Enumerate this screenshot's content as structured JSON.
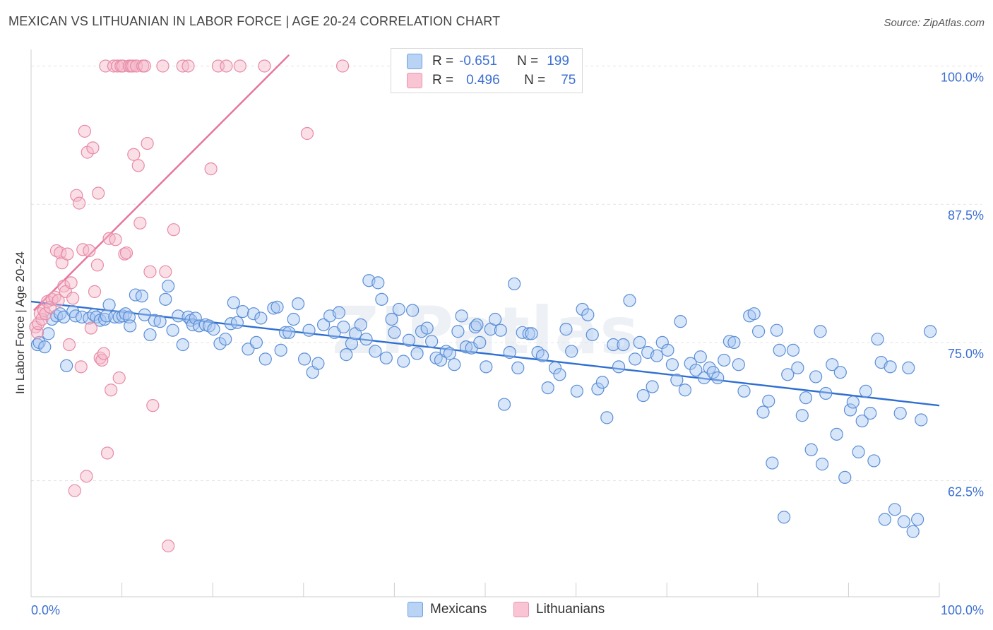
{
  "header": {
    "title": "MEXICAN VS LITHUANIAN IN LABOR FORCE | AGE 20-24 CORRELATION CHART",
    "source": "Source: ZipAtlas.com"
  },
  "legend": {
    "rows": [
      {
        "r_label": "R =",
        "r_value": "-0.651",
        "n_label": "N =",
        "n_value": "199",
        "color": "#a9c8f2"
      },
      {
        "r_label": "R =",
        "r_value": "0.496",
        "n_label": "N =",
        "n_value": "75",
        "color": "#f5b7c9"
      }
    ],
    "series": [
      {
        "label": "Mexicans",
        "color": "#a9c8f2"
      },
      {
        "label": "Lithuanians",
        "color": "#f5b7c9"
      }
    ]
  },
  "watermark": "ZIPatlas",
  "chart_data": {
    "type": "scatter",
    "title": "MEXICAN VS LITHUANIAN IN LABOR FORCE | AGE 20-24 CORRELATION CHART",
    "xlabel": "",
    "ylabel": "In Labor Force | Age 20-24",
    "xlim": [
      0,
      100
    ],
    "ylim": [
      52,
      101.5
    ],
    "x_tick_labels": [
      "0.0%",
      "100.0%"
    ],
    "y_ticks": [
      62.5,
      75.0,
      87.5,
      100.0
    ],
    "y_tick_labels": [
      "62.5%",
      "75.0%",
      "87.5%",
      "100.0%"
    ],
    "grid": true,
    "legend_position": "top-center",
    "series": [
      {
        "name": "Mexicans",
        "color": "#a9c8f2",
        "stroke": "#5b8ed6",
        "trend": {
          "x": [
            0,
            100
          ],
          "y": [
            78.7,
            69.3
          ],
          "color": "#2f6fd1"
        },
        "points": [
          [
            0.7,
            74.8
          ],
          [
            0.9,
            75.0
          ],
          [
            1.5,
            74.6
          ],
          [
            1.9,
            75.8
          ],
          [
            2.3,
            77.1
          ],
          [
            2.8,
            77.4
          ],
          [
            3.2,
            77.6
          ],
          [
            3.6,
            77.3
          ],
          [
            3.9,
            72.9
          ],
          [
            4.6,
            77.8
          ],
          [
            4.9,
            77.4
          ],
          [
            5.6,
            77.3
          ],
          [
            6.4,
            77.2
          ],
          [
            6.9,
            77.5
          ],
          [
            7.2,
            77.3
          ],
          [
            7.6,
            77.0
          ],
          [
            8.1,
            77.1
          ],
          [
            8.3,
            77.4
          ],
          [
            8.6,
            78.4
          ],
          [
            9.2,
            77.3
          ],
          [
            9.7,
            77.3
          ],
          [
            10.1,
            77.4
          ],
          [
            10.4,
            77.6
          ],
          [
            10.8,
            77.3
          ],
          [
            10.9,
            76.5
          ],
          [
            11.5,
            79.3
          ],
          [
            12.2,
            79.2
          ],
          [
            12.5,
            77.5
          ],
          [
            13.1,
            75.7
          ],
          [
            13.6,
            77.0
          ],
          [
            14.2,
            76.9
          ],
          [
            14.8,
            78.9
          ],
          [
            15.1,
            80.1
          ],
          [
            15.6,
            76.1
          ],
          [
            16.2,
            77.4
          ],
          [
            16.7,
            74.8
          ],
          [
            17.3,
            77.3
          ],
          [
            17.6,
            77.0
          ],
          [
            17.8,
            76.6
          ],
          [
            18.1,
            77.2
          ],
          [
            18.5,
            76.5
          ],
          [
            19.2,
            76.6
          ],
          [
            19.6,
            76.5
          ],
          [
            20.1,
            76.2
          ],
          [
            20.8,
            74.9
          ],
          [
            21.4,
            75.3
          ],
          [
            22.0,
            76.7
          ],
          [
            22.3,
            78.6
          ],
          [
            22.7,
            76.8
          ],
          [
            23.3,
            77.8
          ],
          [
            23.9,
            74.4
          ],
          [
            24.5,
            77.6
          ],
          [
            24.8,
            75.0
          ],
          [
            25.3,
            77.2
          ],
          [
            25.8,
            73.5
          ],
          [
            26.7,
            78.1
          ],
          [
            27.1,
            78.2
          ],
          [
            27.5,
            74.3
          ],
          [
            28.0,
            75.9
          ],
          [
            28.4,
            75.9
          ],
          [
            28.9,
            77.1
          ],
          [
            29.4,
            78.5
          ],
          [
            30.1,
            73.5
          ],
          [
            30.6,
            76.1
          ],
          [
            31.0,
            72.3
          ],
          [
            31.6,
            73.1
          ],
          [
            32.2,
            76.6
          ],
          [
            32.9,
            77.4
          ],
          [
            33.4,
            75.9
          ],
          [
            33.9,
            77.7
          ],
          [
            34.4,
            76.4
          ],
          [
            34.7,
            73.9
          ],
          [
            35.3,
            74.9
          ],
          [
            35.7,
            75.8
          ],
          [
            36.3,
            76.6
          ],
          [
            36.9,
            75.3
          ],
          [
            37.2,
            80.6
          ],
          [
            37.9,
            74.2
          ],
          [
            38.2,
            80.4
          ],
          [
            38.6,
            78.9
          ],
          [
            39.1,
            73.6
          ],
          [
            39.7,
            77.1
          ],
          [
            40.0,
            75.9
          ],
          [
            40.5,
            78.0
          ],
          [
            41.0,
            73.3
          ],
          [
            41.6,
            75.2
          ],
          [
            42.0,
            77.9
          ],
          [
            42.5,
            74.0
          ],
          [
            43.0,
            76.0
          ],
          [
            43.6,
            76.3
          ],
          [
            44.1,
            75.1
          ],
          [
            44.6,
            73.6
          ],
          [
            45.1,
            73.4
          ],
          [
            45.7,
            74.2
          ],
          [
            46.1,
            74.0
          ],
          [
            46.6,
            73.0
          ],
          [
            47.0,
            76.0
          ],
          [
            47.4,
            77.4
          ],
          [
            47.9,
            74.6
          ],
          [
            48.5,
            74.5
          ],
          [
            48.9,
            76.4
          ],
          [
            49.1,
            76.6
          ],
          [
            49.4,
            75.0
          ],
          [
            50.1,
            72.8
          ],
          [
            50.6,
            76.2
          ],
          [
            51.1,
            77.1
          ],
          [
            51.7,
            76.1
          ],
          [
            52.1,
            69.4
          ],
          [
            52.7,
            74.1
          ],
          [
            53.2,
            80.3
          ],
          [
            53.6,
            72.7
          ],
          [
            54.1,
            75.9
          ],
          [
            54.8,
            75.8
          ],
          [
            55.1,
            75.8
          ],
          [
            55.8,
            74.1
          ],
          [
            56.3,
            73.8
          ],
          [
            56.9,
            70.9
          ],
          [
            57.7,
            72.7
          ],
          [
            58.2,
            72.1
          ],
          [
            58.9,
            76.2
          ],
          [
            59.5,
            74.2
          ],
          [
            60.1,
            70.6
          ],
          [
            60.7,
            78.0
          ],
          [
            61.3,
            77.5
          ],
          [
            61.8,
            75.7
          ],
          [
            62.4,
            70.8
          ],
          [
            62.9,
            71.4
          ],
          [
            63.4,
            68.2
          ],
          [
            64.1,
            74.8
          ],
          [
            64.7,
            72.8
          ],
          [
            65.2,
            74.8
          ],
          [
            65.9,
            78.8
          ],
          [
            66.5,
            73.5
          ],
          [
            67.0,
            75.0
          ],
          [
            67.4,
            70.2
          ],
          [
            67.9,
            74.1
          ],
          [
            68.4,
            71.0
          ],
          [
            68.9,
            73.8
          ],
          [
            69.5,
            75.0
          ],
          [
            70.1,
            74.3
          ],
          [
            70.6,
            73.0
          ],
          [
            71.1,
            71.6
          ],
          [
            71.5,
            76.9
          ],
          [
            72.0,
            70.7
          ],
          [
            72.6,
            73.1
          ],
          [
            73.2,
            72.5
          ],
          [
            73.7,
            73.7
          ],
          [
            74.1,
            71.8
          ],
          [
            74.7,
            72.7
          ],
          [
            75.1,
            72.3
          ],
          [
            75.6,
            71.8
          ],
          [
            76.3,
            73.4
          ],
          [
            76.9,
            75.1
          ],
          [
            77.4,
            75.0
          ],
          [
            77.9,
            73.0
          ],
          [
            78.5,
            70.6
          ],
          [
            79.1,
            77.4
          ],
          [
            79.6,
            77.6
          ],
          [
            80.1,
            76.0
          ],
          [
            80.6,
            68.7
          ],
          [
            81.2,
            69.7
          ],
          [
            81.6,
            64.1
          ],
          [
            82.1,
            76.1
          ],
          [
            82.4,
            74.3
          ],
          [
            82.9,
            59.2
          ],
          [
            83.3,
            72.1
          ],
          [
            83.9,
            74.3
          ],
          [
            84.4,
            72.7
          ],
          [
            84.9,
            68.4
          ],
          [
            85.3,
            70.0
          ],
          [
            85.9,
            65.3
          ],
          [
            86.4,
            71.9
          ],
          [
            86.9,
            76.0
          ],
          [
            87.1,
            64.0
          ],
          [
            87.5,
            70.4
          ],
          [
            88.2,
            73.0
          ],
          [
            88.7,
            66.7
          ],
          [
            89.1,
            72.3
          ],
          [
            89.6,
            62.8
          ],
          [
            90.2,
            68.9
          ],
          [
            90.5,
            69.6
          ],
          [
            91.1,
            65.1
          ],
          [
            91.5,
            67.9
          ],
          [
            91.9,
            70.6
          ],
          [
            92.4,
            68.6
          ],
          [
            92.8,
            64.3
          ],
          [
            93.2,
            75.3
          ],
          [
            93.6,
            73.2
          ],
          [
            94.0,
            59.0
          ],
          [
            94.6,
            72.8
          ],
          [
            95.1,
            59.9
          ],
          [
            95.7,
            68.6
          ],
          [
            96.1,
            58.8
          ],
          [
            96.6,
            72.7
          ],
          [
            97.1,
            57.9
          ],
          [
            97.6,
            59.0
          ],
          [
            98.0,
            68.0
          ],
          [
            99.0,
            76.0
          ]
        ]
      },
      {
        "name": "Lithuanians",
        "color": "#f5b7c9",
        "stroke": "#e88aa6",
        "trend": {
          "x": [
            0.3,
            28.4
          ],
          "y": [
            77.9,
            101.0
          ],
          "color": "#e8719a"
        },
        "points": [
          [
            0.5,
            76.4
          ],
          [
            0.7,
            75.9
          ],
          [
            0.8,
            76.7
          ],
          [
            1.0,
            77.6
          ],
          [
            1.2,
            77.1
          ],
          [
            1.4,
            77.9
          ],
          [
            1.6,
            77.6
          ],
          [
            1.8,
            78.7
          ],
          [
            2.1,
            78.2
          ],
          [
            2.3,
            78.9
          ],
          [
            2.6,
            79.1
          ],
          [
            2.8,
            83.3
          ],
          [
            3.0,
            78.8
          ],
          [
            3.2,
            83.1
          ],
          [
            3.4,
            82.2
          ],
          [
            3.6,
            80.1
          ],
          [
            3.8,
            79.6
          ],
          [
            4.0,
            83.0
          ],
          [
            4.2,
            74.8
          ],
          [
            4.4,
            80.4
          ],
          [
            4.6,
            79.0
          ],
          [
            4.8,
            61.6
          ],
          [
            5.0,
            88.3
          ],
          [
            5.3,
            87.6
          ],
          [
            5.5,
            72.8
          ],
          [
            5.7,
            83.4
          ],
          [
            5.9,
            94.1
          ],
          [
            6.1,
            62.9
          ],
          [
            6.2,
            92.2
          ],
          [
            6.4,
            83.3
          ],
          [
            6.6,
            76.3
          ],
          [
            6.8,
            92.6
          ],
          [
            7.0,
            79.6
          ],
          [
            7.3,
            82.0
          ],
          [
            7.4,
            88.5
          ],
          [
            7.6,
            73.6
          ],
          [
            7.8,
            73.4
          ],
          [
            8.0,
            74.0
          ],
          [
            8.2,
            100.0
          ],
          [
            8.4,
            65.0
          ],
          [
            8.6,
            84.4
          ],
          [
            8.8,
            70.7
          ],
          [
            9.1,
            100.0
          ],
          [
            9.3,
            84.3
          ],
          [
            9.5,
            100.0
          ],
          [
            9.7,
            71.8
          ],
          [
            9.9,
            100.0
          ],
          [
            10.1,
            100.0
          ],
          [
            10.3,
            83.0
          ],
          [
            10.5,
            83.1
          ],
          [
            10.8,
            100.0
          ],
          [
            11.0,
            100.0
          ],
          [
            11.2,
            100.0
          ],
          [
            11.3,
            92.0
          ],
          [
            11.6,
            100.0
          ],
          [
            11.8,
            91.0
          ],
          [
            12.0,
            85.8
          ],
          [
            12.3,
            100.0
          ],
          [
            12.5,
            100.0
          ],
          [
            12.8,
            93.0
          ],
          [
            13.1,
            81.4
          ],
          [
            13.4,
            69.3
          ],
          [
            14.5,
            100.0
          ],
          [
            14.8,
            81.4
          ],
          [
            15.1,
            56.6
          ],
          [
            15.7,
            85.2
          ],
          [
            16.7,
            100.0
          ],
          [
            17.3,
            100.0
          ],
          [
            19.8,
            90.7
          ],
          [
            20.6,
            100.0
          ],
          [
            21.5,
            100.0
          ],
          [
            25.7,
            100.0
          ],
          [
            30.4,
            93.9
          ],
          [
            34.3,
            100.0
          ],
          [
            23.0,
            100.0
          ]
        ]
      }
    ]
  }
}
